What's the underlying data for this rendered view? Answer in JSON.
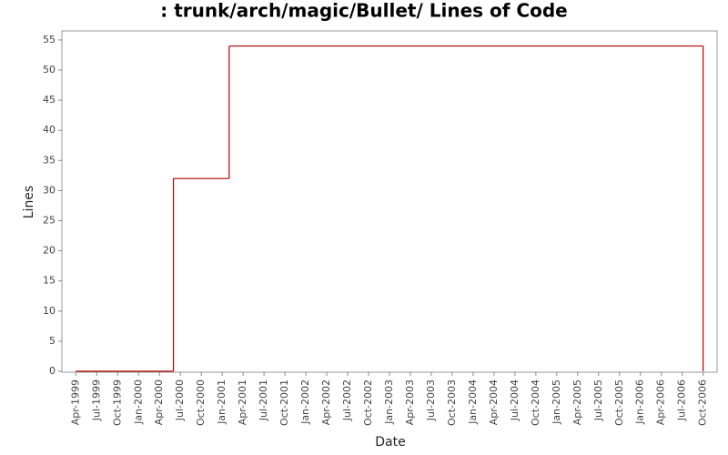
{
  "chart_data": {
    "type": "step-line",
    "title": ": trunk/arch/magic/Bullet/ Lines of Code",
    "x_label": "Date",
    "y_label": "Lines",
    "x": [
      "1999-04",
      "2000-06",
      "2001-02",
      "2006-10"
    ],
    "series": [
      {
        "name": "Lines",
        "color": "#b00000",
        "values": [
          0,
          32,
          54,
          0
        ]
      }
    ],
    "xlim": [
      "1999-02",
      "2006-12"
    ],
    "xticks": [
      {
        "value": "1999-04",
        "label": "Apr-1999"
      },
      {
        "value": "1999-07",
        "label": "Jul-1999"
      },
      {
        "value": "1999-10",
        "label": "Oct-1999"
      },
      {
        "value": "2000-01",
        "label": "Jan-2000"
      },
      {
        "value": "2000-04",
        "label": "Apr-2000"
      },
      {
        "value": "2000-07",
        "label": "Jul-2000"
      },
      {
        "value": "2000-10",
        "label": "Oct-2000"
      },
      {
        "value": "2001-01",
        "label": "Jan-2001"
      },
      {
        "value": "2001-04",
        "label": "Apr-2001"
      },
      {
        "value": "2001-07",
        "label": "Jul-2001"
      },
      {
        "value": "2001-10",
        "label": "Oct-2001"
      },
      {
        "value": "2002-01",
        "label": "Jan-2002"
      },
      {
        "value": "2002-04",
        "label": "Apr-2002"
      },
      {
        "value": "2002-07",
        "label": "Jul-2002"
      },
      {
        "value": "2002-10",
        "label": "Oct-2002"
      },
      {
        "value": "2003-01",
        "label": "Jan-2003"
      },
      {
        "value": "2003-04",
        "label": "Apr-2003"
      },
      {
        "value": "2003-07",
        "label": "Jul-2003"
      },
      {
        "value": "2003-10",
        "label": "Oct-2003"
      },
      {
        "value": "2004-01",
        "label": "Jan-2004"
      },
      {
        "value": "2004-04",
        "label": "Apr-2004"
      },
      {
        "value": "2004-07",
        "label": "Jul-2004"
      },
      {
        "value": "2004-10",
        "label": "Oct-2004"
      },
      {
        "value": "2005-01",
        "label": "Jan-2005"
      },
      {
        "value": "2005-04",
        "label": "Apr-2005"
      },
      {
        "value": "2005-07",
        "label": "Jul-2005"
      },
      {
        "value": "2005-10",
        "label": "Oct-2005"
      },
      {
        "value": "2006-01",
        "label": "Jan-2006"
      },
      {
        "value": "2006-04",
        "label": "Apr-2006"
      },
      {
        "value": "2006-07",
        "label": "Jul-2006"
      },
      {
        "value": "2006-10",
        "label": "Oct-2006"
      }
    ],
    "ylim": [
      0,
      56.5
    ],
    "yticks": [
      0,
      5,
      10,
      15,
      20,
      25,
      30,
      35,
      40,
      45,
      50,
      55
    ],
    "grid": false
  }
}
